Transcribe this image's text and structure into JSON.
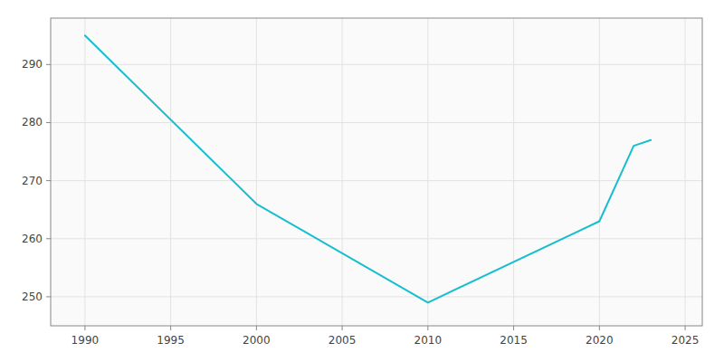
{
  "chart_data": {
    "type": "line",
    "x": [
      1990,
      2000,
      2010,
      2020,
      2022,
      2023
    ],
    "values": [
      295,
      266,
      249,
      263,
      276,
      277
    ],
    "color": "#17becf",
    "xlim": [
      1988,
      2026
    ],
    "ylim": [
      245,
      298
    ],
    "xticks": [
      1990,
      1995,
      2000,
      2005,
      2010,
      2015,
      2020,
      2025
    ],
    "yticks": [
      250,
      260,
      270,
      280,
      290
    ],
    "grid": true
  }
}
